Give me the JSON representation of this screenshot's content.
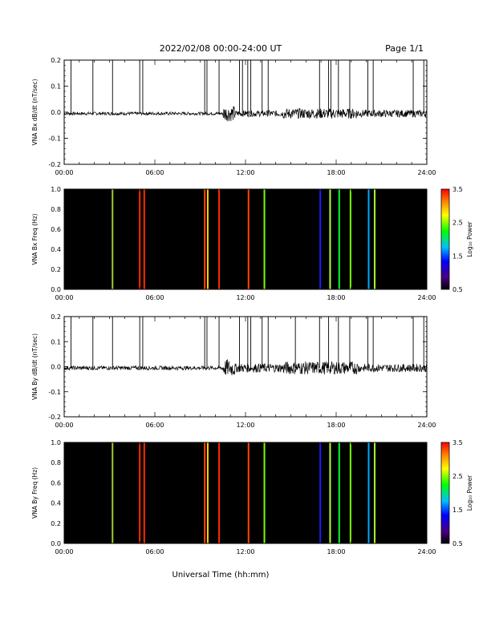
{
  "header": {
    "title": "2022/02/08  00:00-24:00 UT",
    "page": "Page 1/1"
  },
  "chart_data": [
    {
      "type": "line",
      "ylabel": "VNA Bx dB/dt (nT/sec)",
      "ylim": [
        -0.2,
        0.2
      ],
      "yticks": [
        "0.2",
        "0.1",
        "0.0",
        "-0.1",
        "-0.2"
      ],
      "xlim": [
        0,
        24
      ],
      "xticks": [
        "00:00",
        "06:00",
        "12:00",
        "18:00",
        "24:00"
      ],
      "spikes_hours": [
        0.45,
        1.9,
        3.2,
        5.0,
        5.2,
        9.3,
        9.45,
        10.25,
        11.6,
        11.8,
        12.15,
        12.35,
        13.1,
        13.5,
        16.9,
        17.5,
        17.65,
        18.15,
        18.9,
        20.1,
        20.45,
        23.1,
        23.8
      ],
      "baseline": -0.005,
      "noise_segments": [
        {
          "from": 0,
          "to": 10.5,
          "amp": 0.006
        },
        {
          "from": 10.5,
          "to": 11.3,
          "amp": 0.03
        },
        {
          "from": 11.3,
          "to": 14.5,
          "amp": 0.012
        },
        {
          "from": 14.5,
          "to": 19.5,
          "amp": 0.02
        },
        {
          "from": 19.5,
          "to": 24,
          "amp": 0.014
        }
      ]
    },
    {
      "type": "heatmap",
      "ylabel": "VNA Bx Freq (Hz)",
      "ylim": [
        0.0,
        1.0
      ],
      "yticks": [
        "1.0",
        "0.8",
        "0.6",
        "0.4",
        "0.2",
        "0.0"
      ],
      "xlim": [
        0,
        24
      ],
      "xticks": [
        "00:00",
        "06:00",
        "12:00",
        "18:00",
        "24:00"
      ],
      "background": "#000000",
      "colorbar": {
        "label": "Log₁₀ Power",
        "ticks": [
          "3.5",
          "2.5",
          "1.5",
          "0.5"
        ],
        "range": [
          0.5,
          3.5
        ]
      },
      "lines": [
        {
          "hour": 3.2,
          "color": "#9acd32"
        },
        {
          "hour": 5.0,
          "color": "#ff2a00"
        },
        {
          "hour": 5.3,
          "color": "#ff2a00"
        },
        {
          "hour": 9.3,
          "color": "#ff4500"
        },
        {
          "hour": 9.5,
          "color": "#ffd700"
        },
        {
          "hour": 10.25,
          "color": "#ff2a00"
        },
        {
          "hour": 12.2,
          "color": "#ff4500"
        },
        {
          "hour": 13.25,
          "color": "#7cfc00"
        },
        {
          "hour": 16.95,
          "color": "#1e1eff"
        },
        {
          "hour": 17.6,
          "color": "#adff2f"
        },
        {
          "hour": 18.2,
          "color": "#00ff33"
        },
        {
          "hour": 18.95,
          "color": "#7cfc00"
        },
        {
          "hour": 20.15,
          "color": "#00aaff"
        },
        {
          "hour": 20.55,
          "color": "#adff2f"
        }
      ]
    },
    {
      "type": "line",
      "ylabel": "VNA By dB/dt (nT/sec)",
      "ylim": [
        -0.2,
        0.2
      ],
      "yticks": [
        "0.2",
        "0.1",
        "0.0",
        "-0.1",
        "-0.2"
      ],
      "xlim": [
        0,
        24
      ],
      "xticks": [
        "00:00",
        "06:00",
        "12:00",
        "18:00",
        "24:00"
      ],
      "spikes_hours": [
        0.45,
        1.9,
        3.2,
        5.0,
        5.2,
        9.3,
        9.45,
        10.25,
        11.6,
        12.15,
        12.35,
        13.1,
        13.5,
        15.3,
        16.9,
        17.5,
        18.15,
        18.9,
        20.1,
        20.45,
        23.1,
        23.8
      ],
      "baseline": -0.005,
      "noise_segments": [
        {
          "from": 0,
          "to": 10.5,
          "amp": 0.008
        },
        {
          "from": 10.5,
          "to": 11.3,
          "amp": 0.035
        },
        {
          "from": 11.3,
          "to": 14.5,
          "amp": 0.018
        },
        {
          "from": 14.5,
          "to": 19.5,
          "amp": 0.026
        },
        {
          "from": 19.5,
          "to": 24,
          "amp": 0.016
        }
      ]
    },
    {
      "type": "heatmap",
      "ylabel": "VNA By Freq (Hz)",
      "ylim": [
        0.0,
        1.0
      ],
      "yticks": [
        "1.0",
        "0.8",
        "0.6",
        "0.4",
        "0.2",
        "0.0"
      ],
      "xlim": [
        0,
        24
      ],
      "xticks": [
        "00:00",
        "06:00",
        "12:00",
        "18:00",
        "24:00"
      ],
      "background": "#000000",
      "colorbar": {
        "label": "Log₁₀ Power",
        "ticks": [
          "3.5",
          "2.5",
          "1.5",
          "0.5"
        ],
        "range": [
          0.5,
          3.5
        ]
      },
      "lines": [
        {
          "hour": 3.2,
          "color": "#9acd32"
        },
        {
          "hour": 5.0,
          "color": "#ff2a00"
        },
        {
          "hour": 5.3,
          "color": "#ff2a00"
        },
        {
          "hour": 9.3,
          "color": "#ff4500"
        },
        {
          "hour": 9.5,
          "color": "#ffd700"
        },
        {
          "hour": 10.25,
          "color": "#ff2a00"
        },
        {
          "hour": 12.2,
          "color": "#ff4500"
        },
        {
          "hour": 13.25,
          "color": "#7cfc00"
        },
        {
          "hour": 16.95,
          "color": "#1e1eff"
        },
        {
          "hour": 17.6,
          "color": "#adff2f"
        },
        {
          "hour": 18.2,
          "color": "#00ff33"
        },
        {
          "hour": 18.95,
          "color": "#7cfc00"
        },
        {
          "hour": 20.15,
          "color": "#00aaff"
        },
        {
          "hour": 20.55,
          "color": "#adff2f"
        }
      ]
    }
  ],
  "xlabel": "Universal Time (hh:mm)"
}
